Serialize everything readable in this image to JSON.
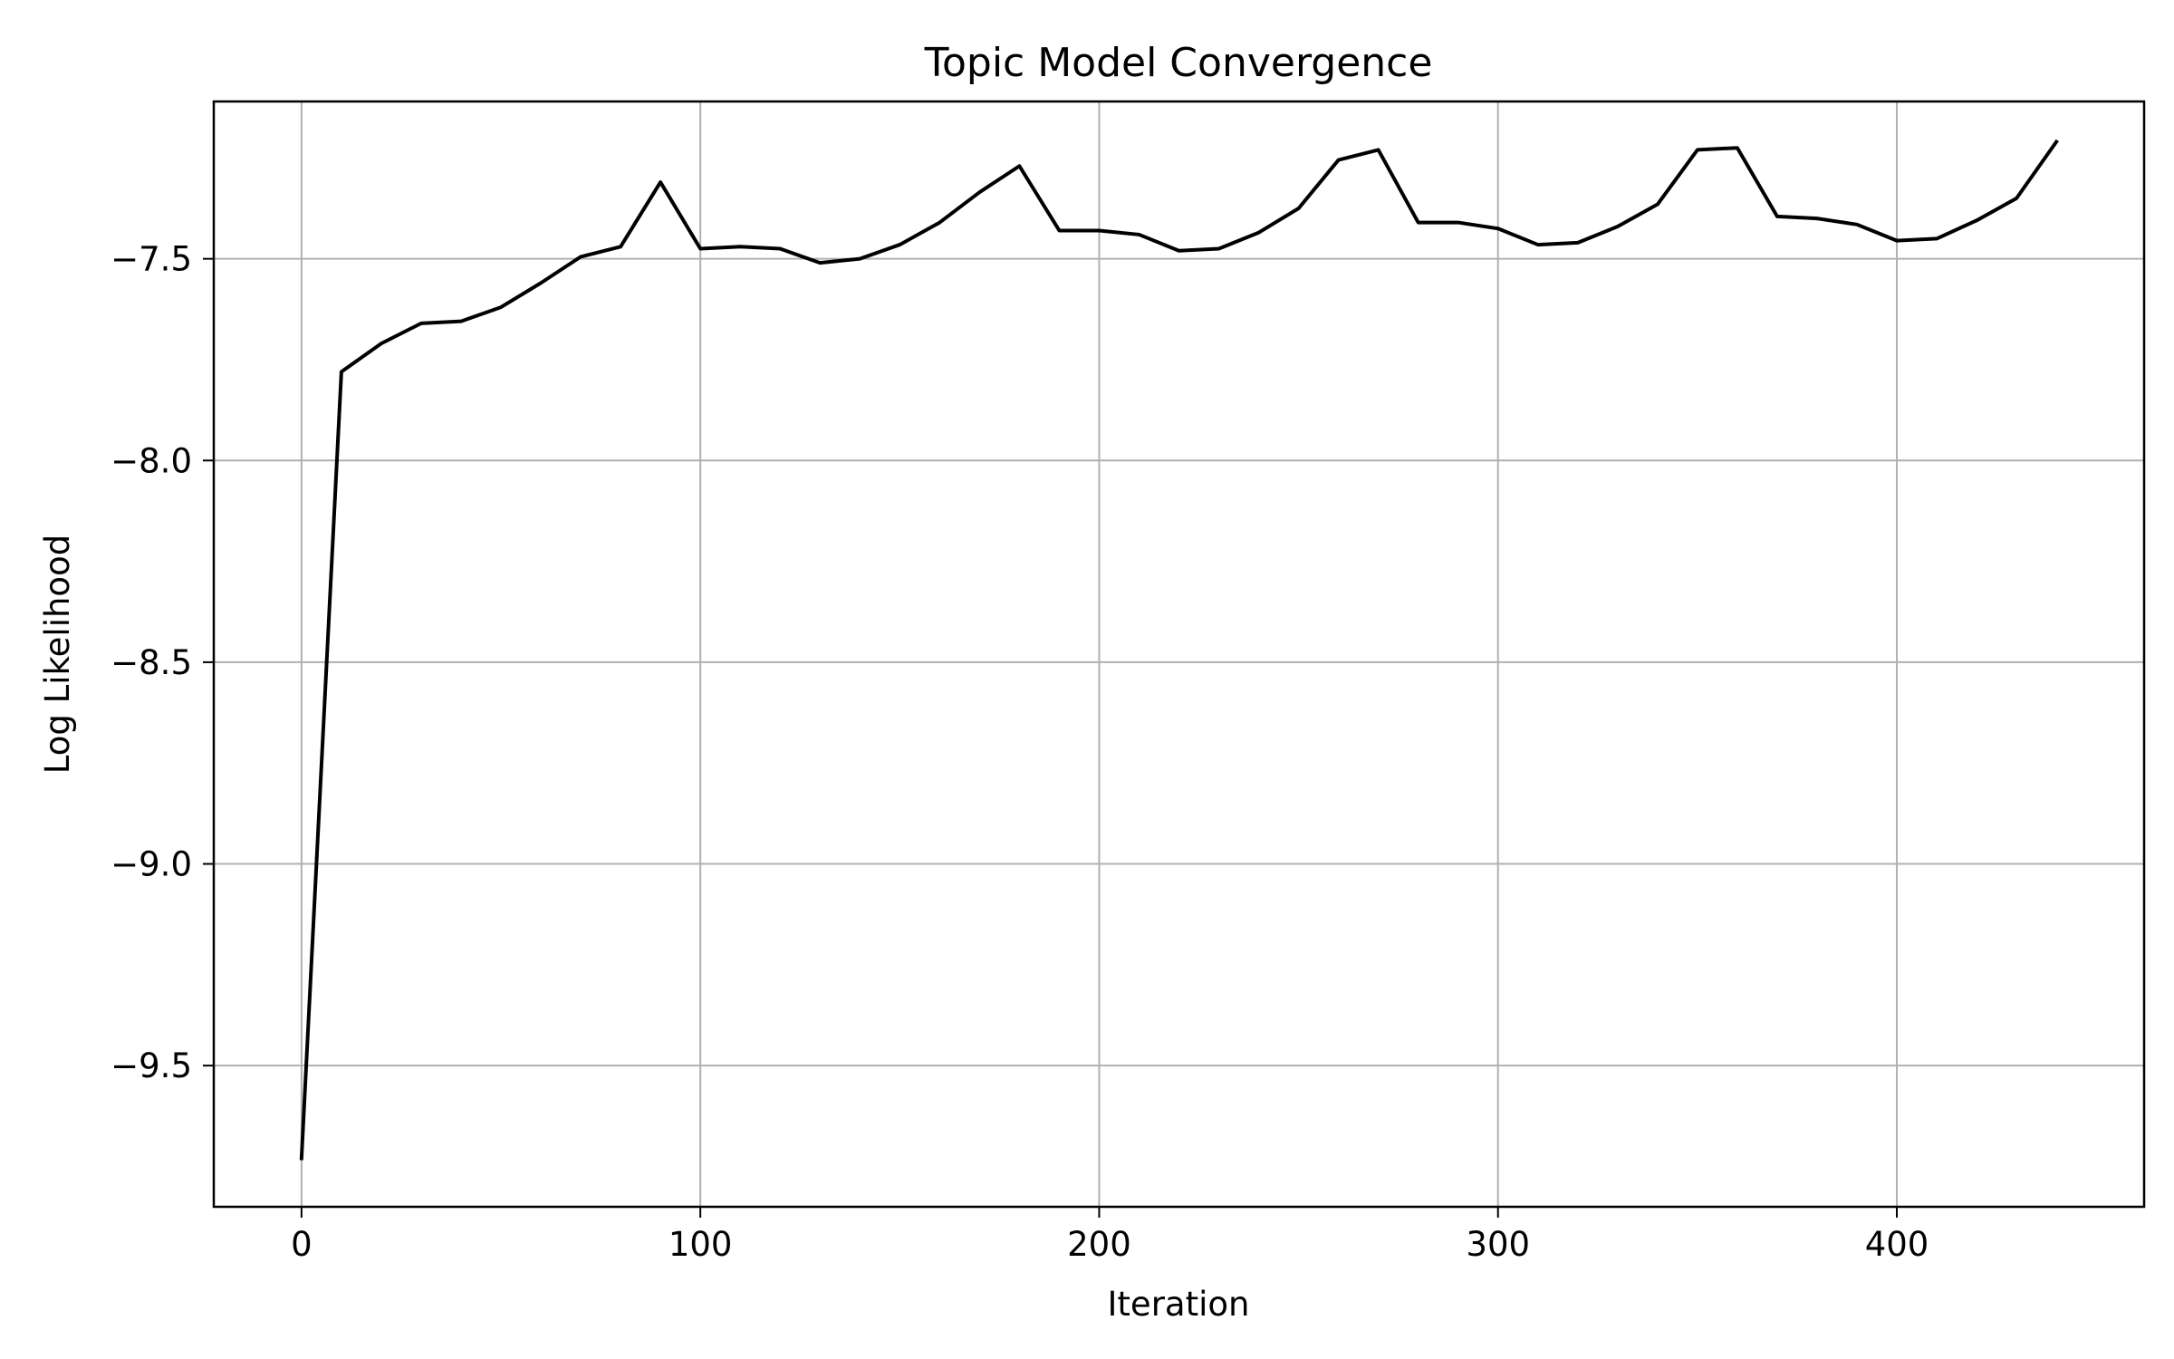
{
  "chart_data": {
    "type": "line",
    "title": "Topic Model Convergence",
    "xlabel": "Iteration",
    "ylabel": "Log Likelihood",
    "xlim": [
      -22,
      462
    ],
    "ylim": [
      -9.85,
      -7.11
    ],
    "xticks": [
      0,
      100,
      200,
      300,
      400
    ],
    "xtick_labels": [
      "0",
      "100",
      "200",
      "300",
      "400"
    ],
    "yticks": [
      -9.5,
      -9.0,
      -8.5,
      -8.0,
      -7.5
    ],
    "ytick_labels": [
      "−9.5",
      "−9.0",
      "−8.5",
      "−8.0",
      "−7.5"
    ],
    "grid": true,
    "line_color": "#000000",
    "grid_color": "#b0b0b0",
    "series": [
      {
        "x": [
          0,
          10,
          20,
          30,
          40,
          50,
          60,
          70,
          80,
          90,
          100,
          110,
          120,
          130,
          140,
          150,
          160,
          170,
          180,
          190,
          200,
          210,
          220,
          230,
          240,
          250,
          260,
          270,
          280,
          290,
          300,
          310,
          320,
          330,
          340,
          350,
          360,
          370,
          380,
          390,
          400,
          410,
          420,
          430,
          440
        ],
        "y": [
          -9.73,
          -7.78,
          -7.71,
          -7.66,
          -7.655,
          -7.62,
          -7.56,
          -7.495,
          -7.47,
          -7.31,
          -7.475,
          -7.47,
          -7.475,
          -7.51,
          -7.5,
          -7.465,
          -7.41,
          -7.335,
          -7.27,
          -7.43,
          -7.43,
          -7.44,
          -7.48,
          -7.475,
          -7.435,
          -7.375,
          -7.255,
          -7.23,
          -7.41,
          -7.41,
          -7.425,
          -7.465,
          -7.46,
          -7.42,
          -7.365,
          -7.23,
          -7.225,
          -7.395,
          -7.4,
          -7.415,
          -7.455,
          -7.45,
          -7.405,
          -7.35,
          -7.21
        ]
      }
    ]
  }
}
